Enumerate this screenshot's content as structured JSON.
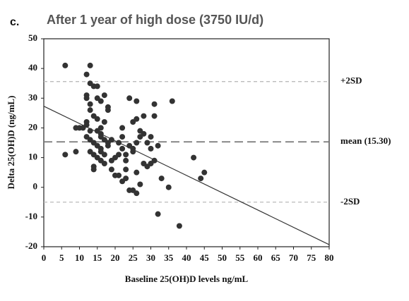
{
  "chart_data": {
    "type": "scatter",
    "panel": "c.",
    "title": "After 1 year of high dose (3750 IU/d)",
    "xlabel": "Baseline 25(OH)D levels ng/mL",
    "ylabel": "Delta 25(OH)D (ng/mL)",
    "xlim": [
      0,
      80
    ],
    "ylim": [
      -20,
      50
    ],
    "xticks": [
      0,
      5,
      10,
      15,
      20,
      25,
      30,
      35,
      40,
      45,
      50,
      55,
      60,
      65,
      70,
      75,
      80
    ],
    "yticks": [
      -20,
      -10,
      0,
      10,
      20,
      30,
      40,
      50
    ],
    "color": "#333333",
    "x": [
      6,
      6,
      9,
      9,
      10,
      11,
      12,
      13,
      12,
      12,
      13,
      14,
      15,
      13,
      13,
      12,
      12,
      13,
      12,
      13,
      14,
      15,
      16,
      14,
      15,
      15,
      16,
      16,
      17,
      17,
      18,
      18,
      17,
      16,
      15,
      13,
      14,
      14,
      14,
      15,
      16,
      16,
      17,
      18,
      18,
      19,
      19,
      20,
      21,
      22,
      22,
      22,
      23,
      23,
      24,
      24,
      25,
      25,
      25,
      26,
      26,
      27,
      27,
      28,
      28,
      28,
      29,
      29,
      30,
      30,
      30,
      31,
      31,
      31,
      32,
      33,
      21,
      22,
      23,
      24,
      25,
      26,
      26,
      27,
      23,
      32,
      36,
      35,
      38,
      42,
      44,
      45,
      19,
      20,
      17,
      16,
      21,
      26
    ],
    "y": [
      41,
      11,
      12,
      20,
      20,
      20,
      38,
      41,
      31,
      30,
      35,
      34,
      34,
      28,
      26,
      22,
      21,
      19,
      17,
      16,
      24,
      23,
      20,
      15,
      14,
      19,
      18,
      17,
      22,
      16,
      26,
      27,
      31,
      29,
      30,
      12,
      11,
      7,
      6,
      10,
      13,
      12,
      11,
      14,
      15,
      16,
      9,
      10,
      15,
      17,
      20,
      13,
      11,
      9,
      30,
      14,
      12,
      13,
      22,
      29,
      23,
      17,
      19,
      24,
      18,
      8,
      7,
      15,
      17,
      8,
      13,
      28,
      24,
      9,
      14,
      3,
      4,
      2,
      6,
      -1,
      -1,
      -2,
      5,
      1,
      3,
      -9,
      29,
      0,
      -13,
      10,
      3,
      5,
      6,
      4,
      8,
      9,
      11,
      15
    ],
    "reference_lines": [
      {
        "label": "+2SD",
        "value": 35.6
      },
      {
        "label": "mean (15.30)",
        "value": 15.3
      },
      {
        "label": "-2SD",
        "value": -5
      }
    ],
    "regression": {
      "x": [
        0,
        80
      ],
      "y": [
        27.3,
        -19.3
      ]
    }
  }
}
